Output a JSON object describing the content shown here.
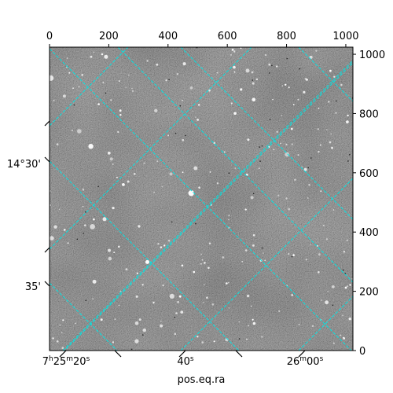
{
  "chart_data": {
    "type": "image",
    "xlabel": "pos.eq.ra",
    "ylabel": "",
    "pixel_axes": {
      "top": {
        "range": [
          0,
          1024
        ],
        "ticks": [
          "0",
          "200",
          "400",
          "600",
          "800",
          "1000"
        ],
        "tick_values": [
          0,
          200,
          400,
          600,
          800,
          1000
        ]
      },
      "right": {
        "range": [
          0,
          1024
        ],
        "ticks": [
          "0",
          "200",
          "400",
          "600",
          "800",
          "1000"
        ],
        "tick_values": [
          0,
          200,
          400,
          600,
          800,
          1000
        ]
      }
    },
    "world_axes": {
      "bottom_ra_labels": [
        {
          "h": "7",
          "hsup": "h",
          "m": "25",
          "msup": "m",
          "s": "20",
          "ssup": "s"
        },
        {
          "s": "40",
          "ssup": "s"
        },
        {
          "m": "26",
          "msup": "m",
          "s": "00",
          "ssup": "s"
        }
      ],
      "left_dec_labels": [
        "14°30'",
        "35'"
      ]
    },
    "grid": true,
    "grid_color": "#00e5e5",
    "image_colormap": "gray"
  }
}
